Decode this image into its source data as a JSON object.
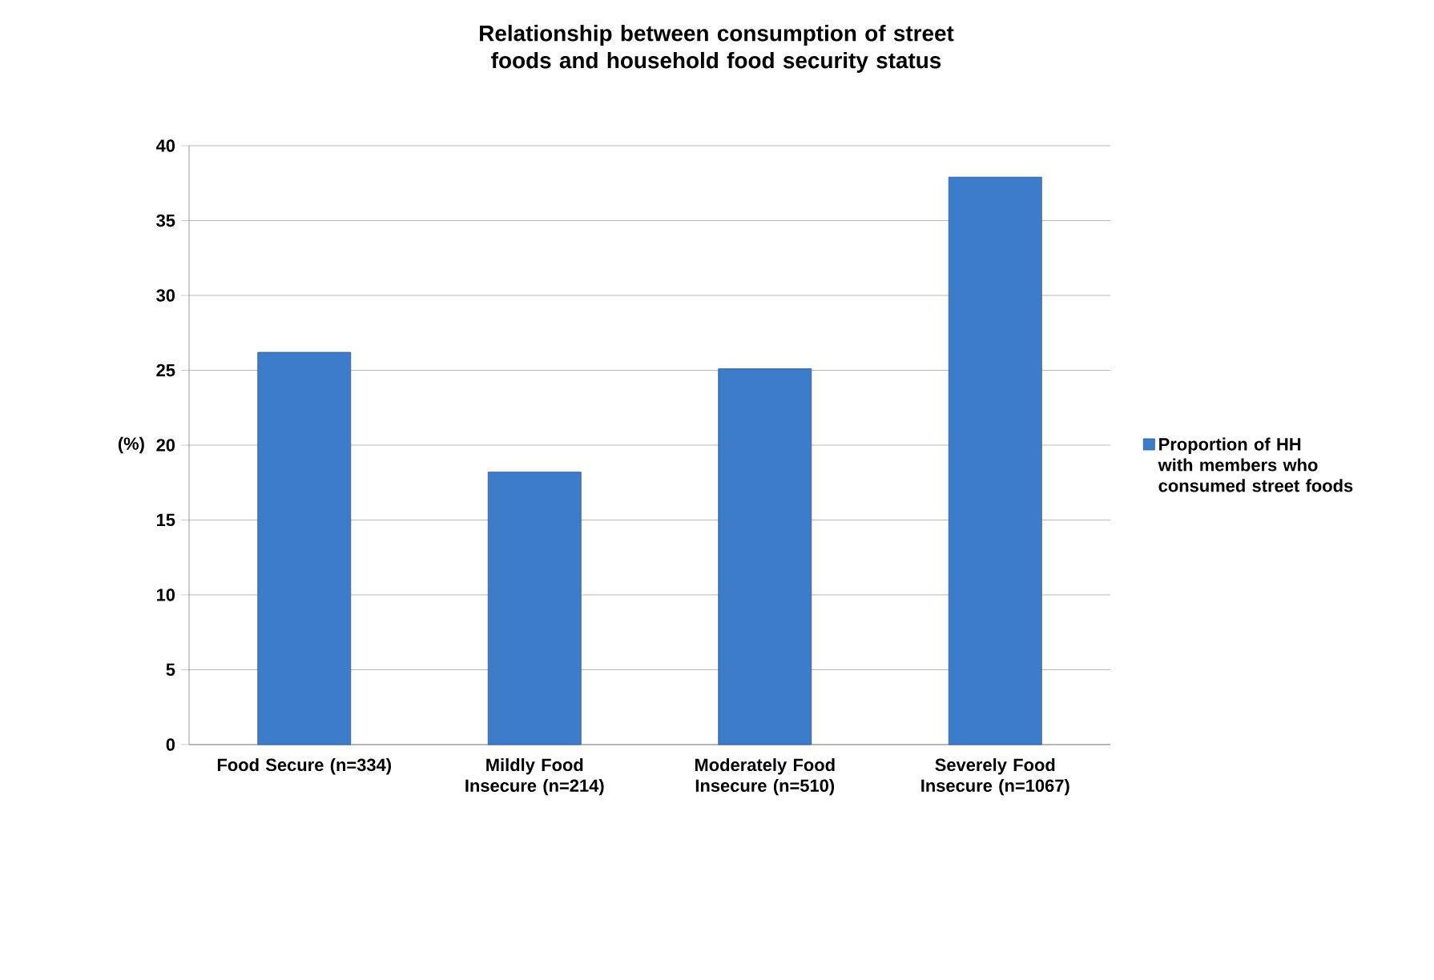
{
  "chart_data": {
    "type": "bar",
    "title": "Relationship between consumption of street foods and household food security status",
    "ylabel": "(%)",
    "categories": [
      "Food Secure (n=334)",
      "Mildly Food Insecure (n=214)",
      "Moderately Food Insecure (n=510)",
      "Severely Food Insecure (n=1067)"
    ],
    "series": [
      {
        "name": "Proportion of HH with members who consumed street foods",
        "color": "#3d7cc9",
        "values": [
          26.2,
          18.2,
          25.1,
          37.9
        ]
      }
    ],
    "ylim": [
      0,
      40
    ],
    "yticks": [
      0,
      5,
      10,
      15,
      20,
      25,
      30,
      35,
      40
    ],
    "grid": "y",
    "legend": "right"
  }
}
